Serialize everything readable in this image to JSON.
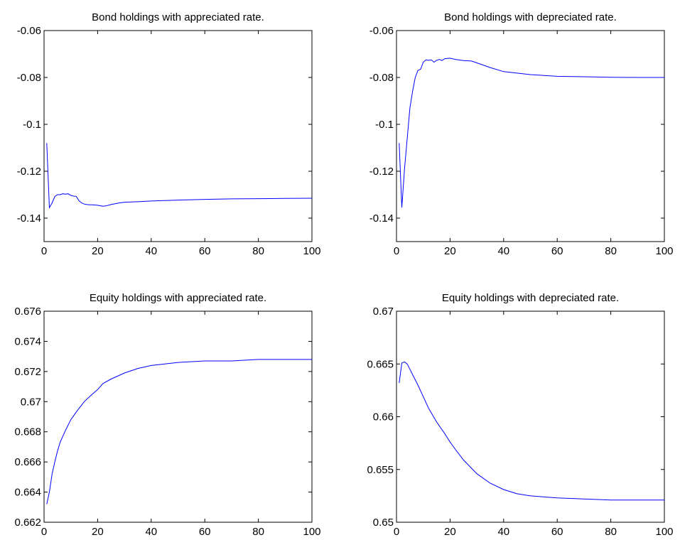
{
  "chart_data": [
    {
      "type": "line",
      "title": "Bond holdings with appreciated rate.",
      "xlabel": "",
      "ylabel": "",
      "xlim": [
        0,
        100
      ],
      "ylim": [
        -0.15,
        -0.06
      ],
      "xticks": [
        0,
        20,
        40,
        60,
        80,
        100
      ],
      "xtick_labels": [
        "0",
        "20",
        "40",
        "60",
        "80",
        "100"
      ],
      "yticks": [
        -0.14,
        -0.12,
        -0.1,
        -0.08,
        -0.06
      ],
      "ytick_labels": [
        "-0.14",
        "-0.12",
        "-0.1",
        "-0.08",
        "-0.06"
      ],
      "grid": false,
      "line_color": "#0000ff",
      "series": [
        {
          "x": [
            1,
            2,
            3,
            4,
            5,
            6,
            7,
            8,
            9,
            10,
            11,
            12,
            13,
            14,
            15,
            16,
            17,
            18,
            20,
            22,
            23,
            25,
            28,
            30,
            35,
            40,
            50,
            60,
            70,
            80,
            90,
            100
          ],
          "values": [
            -0.108,
            -0.1355,
            -0.1335,
            -0.1308,
            -0.13,
            -0.13,
            -0.1296,
            -0.1298,
            -0.1296,
            -0.1303,
            -0.1306,
            -0.1307,
            -0.1325,
            -0.1335,
            -0.134,
            -0.1342,
            -0.1343,
            -0.1343,
            -0.1345,
            -0.1349,
            -0.1348,
            -0.1342,
            -0.1335,
            -0.1332,
            -0.133,
            -0.1327,
            -0.1323,
            -0.132,
            -0.1318,
            -0.1317,
            -0.1316,
            -0.1315
          ]
        }
      ]
    },
    {
      "type": "line",
      "title": "Bond holdings with depreciated rate.",
      "xlabel": "",
      "ylabel": "",
      "xlim": [
        0,
        100
      ],
      "ylim": [
        -0.15,
        -0.06
      ],
      "xticks": [
        0,
        20,
        40,
        60,
        80,
        100
      ],
      "xtick_labels": [
        "0",
        "20",
        "40",
        "60",
        "80",
        "100"
      ],
      "yticks": [
        -0.14,
        -0.12,
        -0.1,
        -0.08,
        -0.06
      ],
      "ytick_labels": [
        "-0.14",
        "-0.12",
        "-0.1",
        "-0.08",
        "-0.06"
      ],
      "grid": false,
      "line_color": "#0000ff",
      "series": [
        {
          "x": [
            1,
            2,
            3,
            4,
            5,
            6,
            7,
            8,
            9,
            10,
            11,
            12,
            13,
            14,
            15,
            16,
            17,
            18,
            20,
            22,
            25,
            28,
            30,
            35,
            40,
            50,
            60,
            70,
            80,
            90,
            100
          ],
          "values": [
            -0.108,
            -0.1355,
            -0.119,
            -0.106,
            -0.093,
            -0.086,
            -0.08,
            -0.077,
            -0.0765,
            -0.0735,
            -0.0725,
            -0.0727,
            -0.0725,
            -0.0735,
            -0.0727,
            -0.0723,
            -0.0728,
            -0.072,
            -0.0718,
            -0.0723,
            -0.0728,
            -0.073,
            -0.0738,
            -0.0758,
            -0.0775,
            -0.0788,
            -0.0795,
            -0.0797,
            -0.0799,
            -0.08,
            -0.08
          ]
        }
      ]
    },
    {
      "type": "line",
      "title": "Equity holdings with appreciated rate.",
      "xlabel": "",
      "ylabel": "",
      "xlim": [
        0,
        100
      ],
      "ylim": [
        0.662,
        0.676
      ],
      "xticks": [
        0,
        20,
        40,
        60,
        80,
        100
      ],
      "xtick_labels": [
        "0",
        "20",
        "40",
        "60",
        "80",
        "100"
      ],
      "yticks": [
        0.662,
        0.664,
        0.666,
        0.668,
        0.67,
        0.672,
        0.674,
        0.676
      ],
      "ytick_labels": [
        "0.662",
        "0.664",
        "0.666",
        "0.668",
        "0.67",
        "0.672",
        "0.674",
        "0.676"
      ],
      "grid": false,
      "line_color": "#0000ff",
      "series": [
        {
          "x": [
            1,
            2,
            3,
            4,
            5,
            6,
            8,
            10,
            12,
            15,
            18,
            20,
            22,
            25,
            30,
            35,
            40,
            45,
            50,
            60,
            70,
            80,
            90,
            100
          ],
          "values": [
            0.6632,
            0.664,
            0.6652,
            0.666,
            0.6667,
            0.6673,
            0.6681,
            0.6688,
            0.6693,
            0.67,
            0.6705,
            0.6708,
            0.6712,
            0.6715,
            0.6719,
            0.6722,
            0.6724,
            0.6725,
            0.6726,
            0.6727,
            0.6727,
            0.6728,
            0.6728,
            0.6728
          ]
        }
      ]
    },
    {
      "type": "line",
      "title": "Equity holdings with depreciated rate.",
      "xlabel": "",
      "ylabel": "",
      "xlim": [
        0,
        100
      ],
      "ylim": [
        0.65,
        0.67
      ],
      "xticks": [
        0,
        20,
        40,
        60,
        80,
        100
      ],
      "xtick_labels": [
        "0",
        "20",
        "40",
        "60",
        "80",
        "100"
      ],
      "yticks": [
        0.65,
        0.655,
        0.66,
        0.665,
        0.67
      ],
      "ytick_labels": [
        "0.65",
        "0.655",
        "0.66",
        "0.665",
        "0.67"
      ],
      "grid": false,
      "line_color": "#0000ff",
      "series": [
        {
          "x": [
            1,
            2,
            3,
            4,
            5,
            6,
            8,
            10,
            12,
            15,
            18,
            20,
            22,
            25,
            30,
            35,
            40,
            45,
            50,
            60,
            70,
            80,
            90,
            100
          ],
          "values": [
            0.6632,
            0.6651,
            0.6652,
            0.665,
            0.6645,
            0.664,
            0.663,
            0.6619,
            0.6608,
            0.6595,
            0.6584,
            0.6576,
            0.6569,
            0.6559,
            0.6546,
            0.6537,
            0.6531,
            0.6527,
            0.6525,
            0.6523,
            0.6522,
            0.6521,
            0.6521,
            0.6521
          ]
        }
      ]
    }
  ]
}
